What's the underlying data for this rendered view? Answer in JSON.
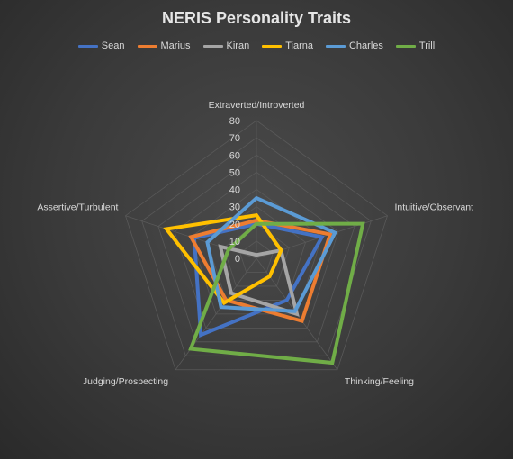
{
  "chart_data": {
    "type": "radar",
    "title": "NERIS Personality Traits",
    "axes": [
      "Extraverted/Introverted",
      "Intuitive/Observant",
      "Thinking/Feeling",
      "Judging/Prospecting",
      "Assertive/Turbulent"
    ],
    "rlim": [
      0,
      80
    ],
    "ticks": [
      "0",
      "10",
      "20",
      "30",
      "40",
      "50",
      "60",
      "70",
      "80"
    ],
    "grid": true,
    "legend_position": "top",
    "series": [
      {
        "name": "Sean",
        "color": "#4472c4",
        "values": [
          20,
          40,
          30,
          55,
          38
        ]
      },
      {
        "name": "Marius",
        "color": "#ed7d31",
        "values": [
          22,
          45,
          45,
          30,
          40
        ]
      },
      {
        "name": "Kiran",
        "color": "#a5a5a5",
        "values": [
          2,
          15,
          40,
          25,
          22
        ]
      },
      {
        "name": "Tiarna",
        "color": "#ffc000",
        "values": [
          25,
          15,
          13,
          32,
          55
        ]
      },
      {
        "name": "Charles",
        "color": "#5b9bd5",
        "values": [
          35,
          48,
          38,
          35,
          30
        ]
      },
      {
        "name": "Trill",
        "color": "#70ad47",
        "values": [
          20,
          65,
          75,
          65,
          17
        ]
      }
    ]
  }
}
